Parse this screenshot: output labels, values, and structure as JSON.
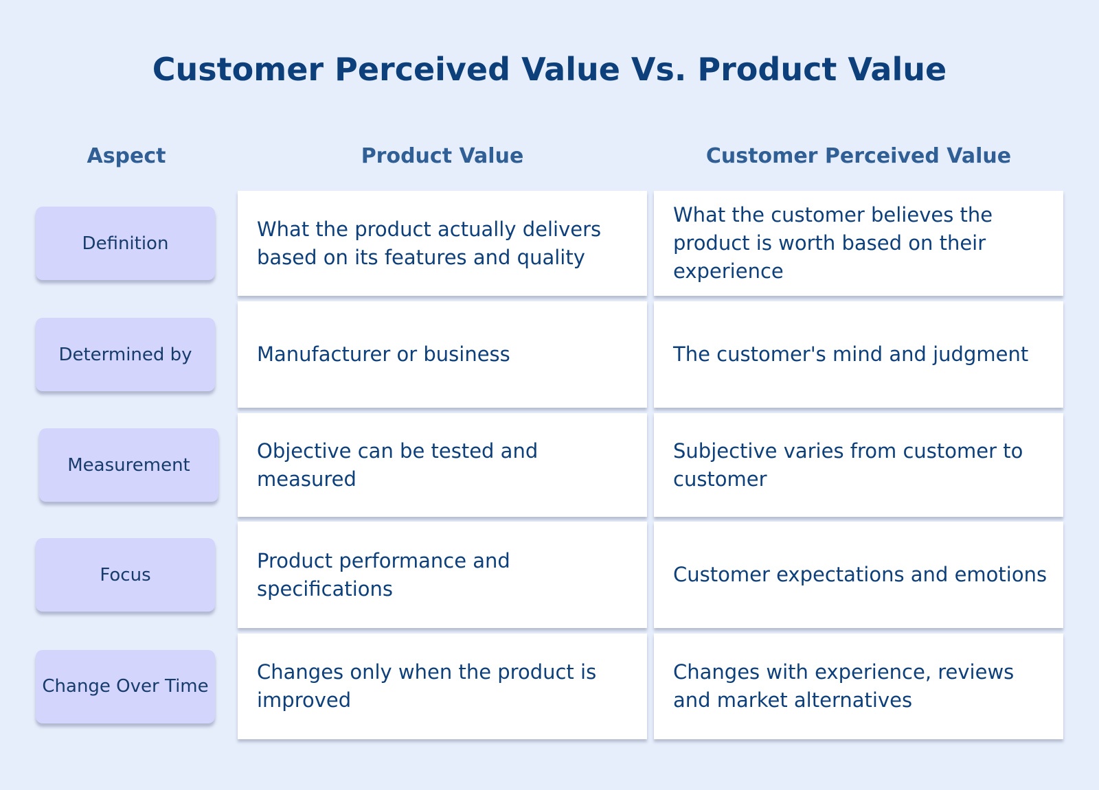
{
  "title": "Customer Perceived Value Vs. Product Value",
  "table": {
    "headers": [
      "Aspect",
      "Product Value",
      "Customer Perceived Value"
    ],
    "rows": [
      [
        "Definition",
        "What the product actually delivers based on its features and quality",
        "What the customer believes the product is worth based on their experience"
      ],
      [
        "Determined by",
        "Manufacturer or business",
        "The customer's mind and judgment"
      ],
      [
        "Measurement",
        "Objective can be tested and measured",
        "Subjective varies from customer to customer"
      ],
      [
        "Focus",
        "Product performance and specifications",
        "Customer expectations and emotions"
      ],
      [
        "Change Over Time",
        "Changes only when the product is improved",
        "Changes with experience, reviews and market alternatives"
      ]
    ]
  }
}
